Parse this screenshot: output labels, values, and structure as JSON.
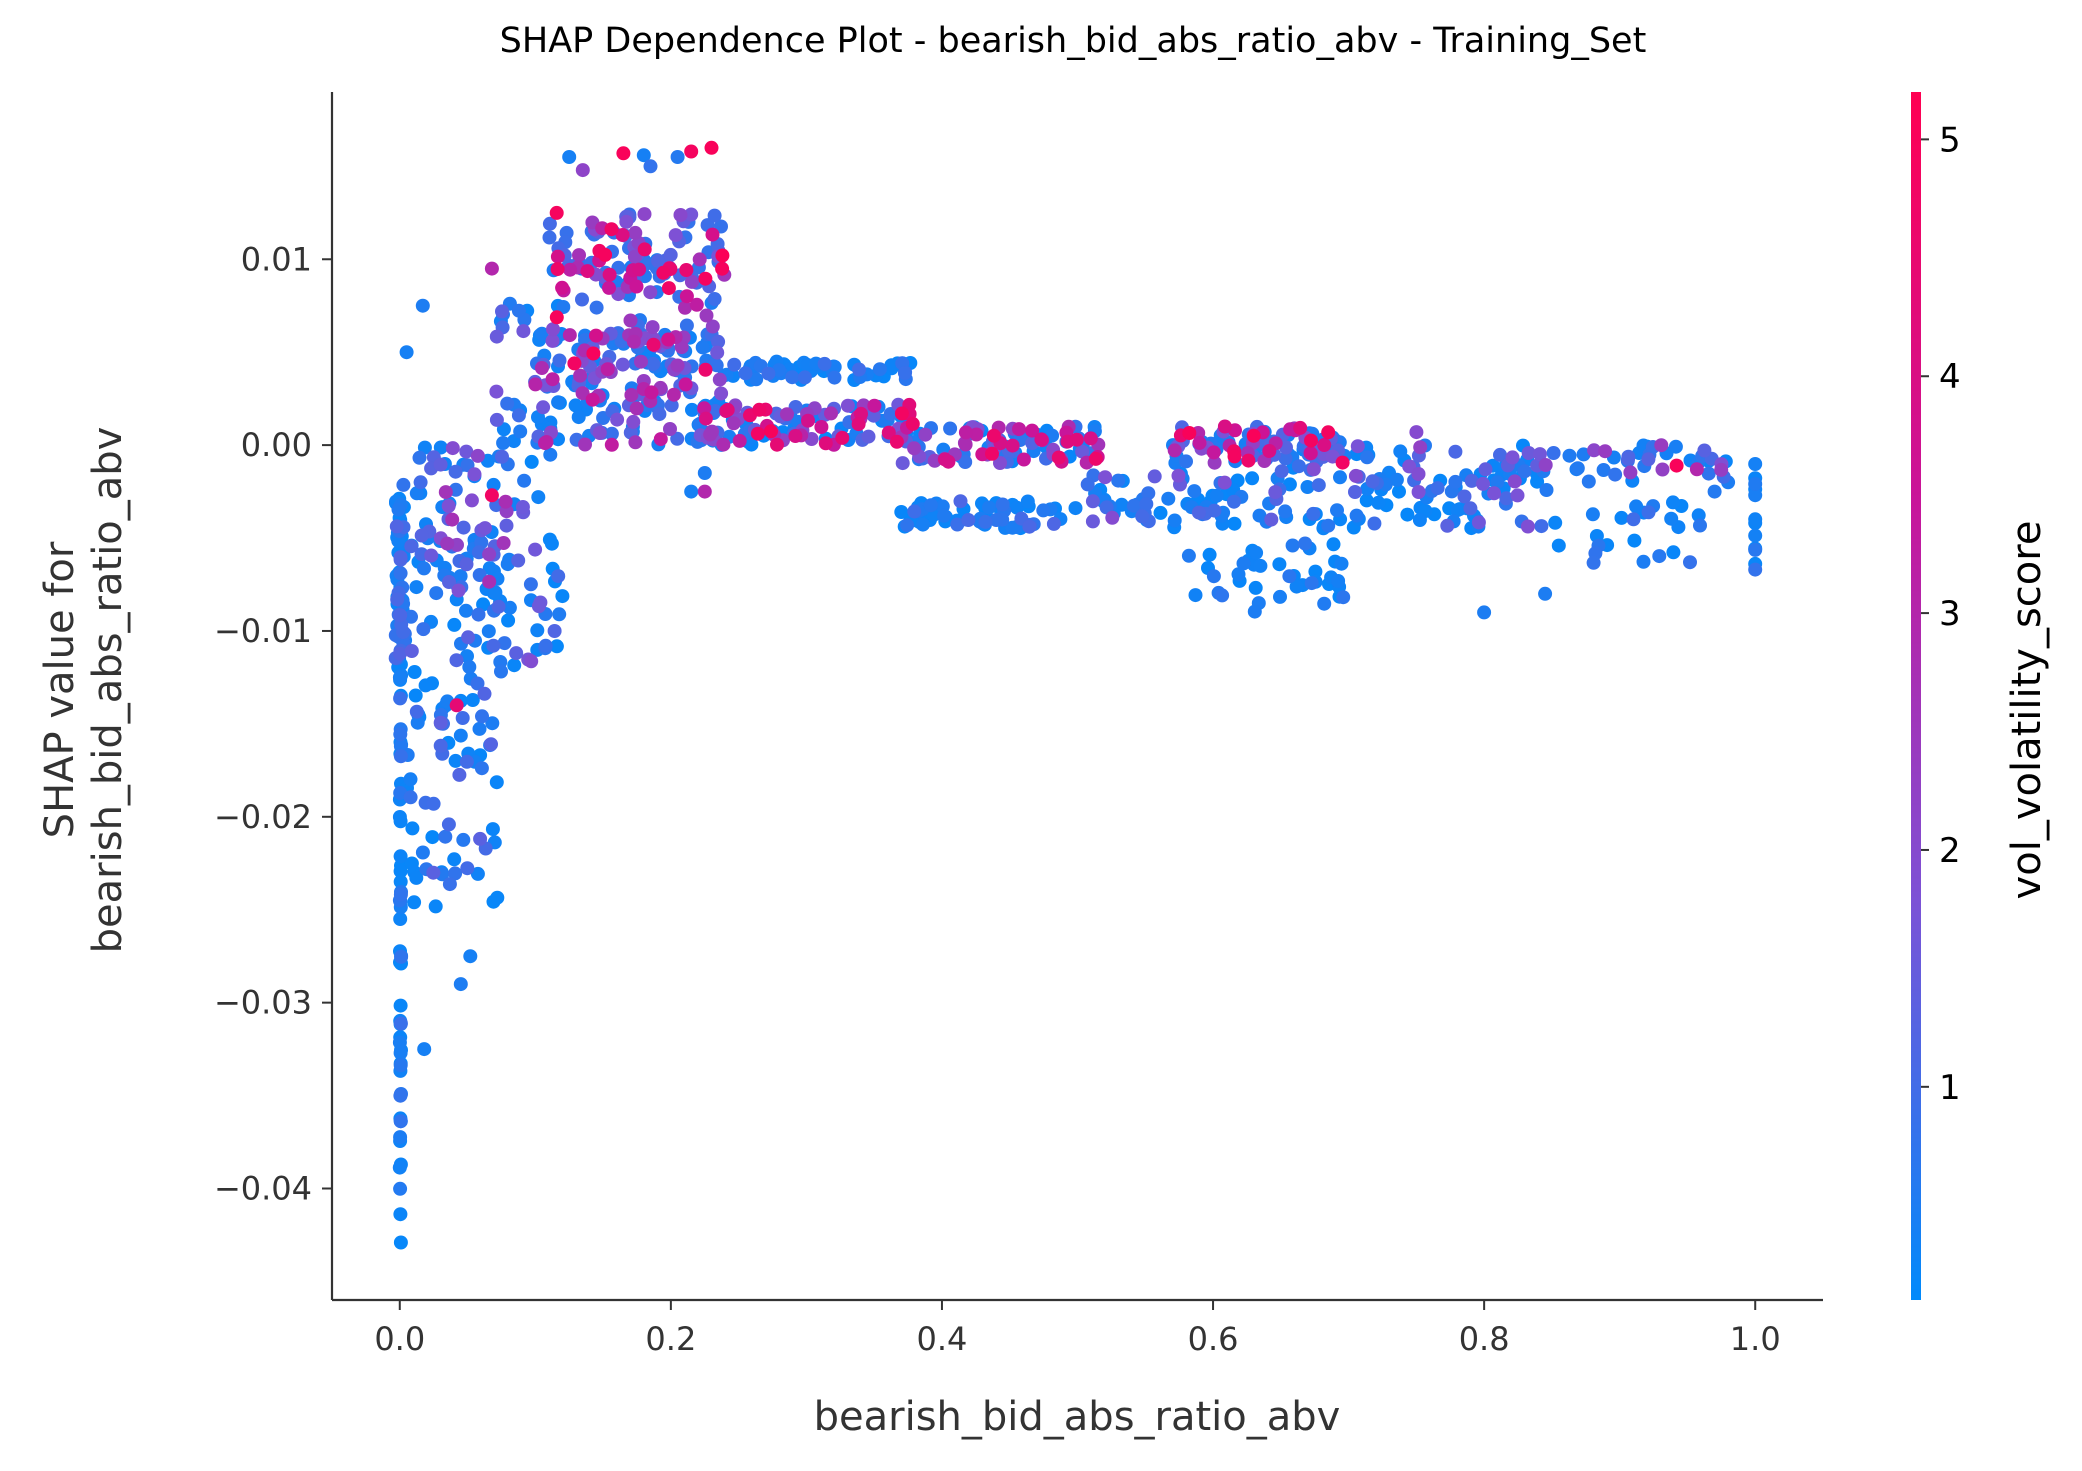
{
  "chart_data": {
    "type": "scatter",
    "title": "SHAP Dependence Plot - bearish_bid_abs_ratio_abv - Training_Set",
    "xlabel": "bearish_bid_abs_ratio_abv",
    "ylabel_line1": "SHAP value for",
    "ylabel_line2": "bearish_bid_abs_ratio_abv",
    "xlim": [
      -0.05,
      1.05
    ],
    "ylim": [
      -0.046,
      0.019
    ],
    "xticks": [
      0.0,
      0.2,
      0.4,
      0.6,
      0.8,
      1.0
    ],
    "xtick_labels": [
      "0.0",
      "0.2",
      "0.4",
      "0.6",
      "0.8",
      "1.0"
    ],
    "yticks": [
      0.01,
      0.0,
      -0.01,
      -0.02,
      -0.03,
      -0.04
    ],
    "ytick_labels": [
      "0.01",
      "0.00",
      "−0.01",
      "−0.02",
      "−0.03",
      "−0.04"
    ],
    "colorbar": {
      "label": "vol_volatility_score",
      "range": [
        0.1,
        5.2
      ],
      "ticks": [
        1,
        2,
        3,
        4,
        5
      ],
      "tick_labels": [
        "1",
        "2",
        "3",
        "4",
        "5"
      ],
      "colormap": [
        "#008afb",
        "#7c52d6",
        "#c8159a",
        "#ff0052"
      ]
    },
    "clusters": [
      {
        "x": [
          0.0,
          0.001
        ],
        "y": [
          -0.043,
          -0.012
        ],
        "n": 55,
        "c": [
          0.2,
          0.9
        ]
      },
      {
        "x": [
          -0.003,
          0.004
        ],
        "y": [
          -0.012,
          -0.002
        ],
        "n": 60,
        "c": [
          0.2,
          1.3
        ]
      },
      {
        "x": [
          0.005,
          0.075
        ],
        "y": [
          -0.025,
          -0.005
        ],
        "n": 110,
        "c": [
          0.2,
          1.4
        ]
      },
      {
        "x": [
          0.01,
          0.08
        ],
        "y": [
          -0.008,
          0.0
        ],
        "n": 70,
        "c": [
          0.3,
          2.8
        ]
      },
      {
        "x": [
          0.07,
          0.12
        ],
        "y": [
          -0.012,
          0.008
        ],
        "n": 70,
        "c": [
          0.2,
          2.0
        ]
      },
      {
        "x": [
          0.1,
          0.24
        ],
        "y": [
          0.0,
          0.006
        ],
        "n": 150,
        "c": [
          0.3,
          3.5
        ]
      },
      {
        "x": [
          0.11,
          0.24
        ],
        "y": [
          0.004,
          0.01
        ],
        "n": 90,
        "c": [
          0.5,
          5.1
        ]
      },
      {
        "x": [
          0.11,
          0.24
        ],
        "y": [
          0.009,
          0.0125
        ],
        "n": 80,
        "c": [
          0.8,
          5.1
        ]
      },
      {
        "x": [
          0.23,
          0.38
        ],
        "y": [
          0.0035,
          0.0045
        ],
        "n": 60,
        "c": [
          0.2,
          1.0
        ]
      },
      {
        "x": [
          0.22,
          0.38
        ],
        "y": [
          0.0,
          0.0022
        ],
        "n": 120,
        "c": [
          0.2,
          5.1
        ]
      },
      {
        "x": [
          0.37,
          0.52
        ],
        "y": [
          -0.001,
          0.001
        ],
        "n": 100,
        "c": [
          0.2,
          4.8
        ]
      },
      {
        "x": [
          0.37,
          0.5
        ],
        "y": [
          -0.0045,
          -0.003
        ],
        "n": 60,
        "c": [
          0.2,
          1.2
        ]
      },
      {
        "x": [
          0.5,
          0.85
        ],
        "y": [
          -0.0045,
          -0.0015
        ],
        "n": 140,
        "c": [
          0.2,
          2.0
        ]
      },
      {
        "x": [
          0.57,
          0.7
        ],
        "y": [
          -0.001,
          0.001
        ],
        "n": 90,
        "c": [
          0.4,
          5.1
        ]
      },
      {
        "x": [
          0.58,
          0.7
        ],
        "y": [
          -0.009,
          -0.005
        ],
        "n": 40,
        "c": [
          0.2,
          1.0
        ]
      },
      {
        "x": [
          0.65,
          0.98
        ],
        "y": [
          -0.002,
          0.0
        ],
        "n": 90,
        "c": [
          0.2,
          2.5
        ]
      },
      {
        "x": [
          0.85,
          0.96
        ],
        "y": [
          -0.0065,
          -0.003
        ],
        "n": 25,
        "c": [
          0.2,
          1.0
        ]
      },
      {
        "x": [
          1.0,
          1.0
        ],
        "y": [
          -0.007,
          -0.0005
        ],
        "n": 12,
        "c": [
          0.2,
          0.8
        ]
      }
    ],
    "outliers": [
      {
        "x": 0.017,
        "y": 0.0075,
        "c": 0.5
      },
      {
        "x": 0.005,
        "y": 0.005,
        "c": 0.4
      },
      {
        "x": 0.018,
        "y": -0.0325,
        "c": 0.4
      },
      {
        "x": 0.125,
        "y": 0.0155,
        "c": 0.4
      },
      {
        "x": 0.165,
        "y": 0.0157,
        "c": 5.0
      },
      {
        "x": 0.18,
        "y": 0.0156,
        "c": 0.4
      },
      {
        "x": 0.205,
        "y": 0.0155,
        "c": 0.6
      },
      {
        "x": 0.215,
        "y": 0.0158,
        "c": 4.9
      },
      {
        "x": 0.23,
        "y": 0.016,
        "c": 5.0
      },
      {
        "x": 0.185,
        "y": 0.015,
        "c": 0.8
      },
      {
        "x": 0.135,
        "y": 0.0148,
        "c": 2.2
      },
      {
        "x": 0.068,
        "y": 0.0095,
        "c": 3.0
      },
      {
        "x": 0.215,
        "y": -0.0025,
        "c": 0.4
      },
      {
        "x": 0.225,
        "y": -0.0015,
        "c": 0.5
      },
      {
        "x": 0.225,
        "y": -0.0025,
        "c": 3.0
      },
      {
        "x": 0.045,
        "y": -0.029,
        "c": 0.5
      },
      {
        "x": 0.052,
        "y": -0.0275,
        "c": 0.4
      },
      {
        "x": 0.042,
        "y": -0.014,
        "c": 4.4
      },
      {
        "x": 0.035,
        "y": -0.0053,
        "c": 2.5
      },
      {
        "x": 0.068,
        "y": -0.0027,
        "c": 4.8
      },
      {
        "x": 0.8,
        "y": -0.009,
        "c": 0.5
      },
      {
        "x": 0.845,
        "y": -0.008,
        "c": 0.5
      },
      {
        "x": 0.98,
        "y": -0.002,
        "c": 0.5
      },
      {
        "x": 0.97,
        "y": -0.0025,
        "c": 0.6
      },
      {
        "x": 0.942,
        "y": -0.0011,
        "c": 5.0
      },
      {
        "x": 0.957,
        "y": -0.0013,
        "c": 3.0
      },
      {
        "x": 0.75,
        "y": 0.0007,
        "c": 2.0
      },
      {
        "x": 0.63,
        "y": 0.0005,
        "c": 5.0
      }
    ]
  }
}
